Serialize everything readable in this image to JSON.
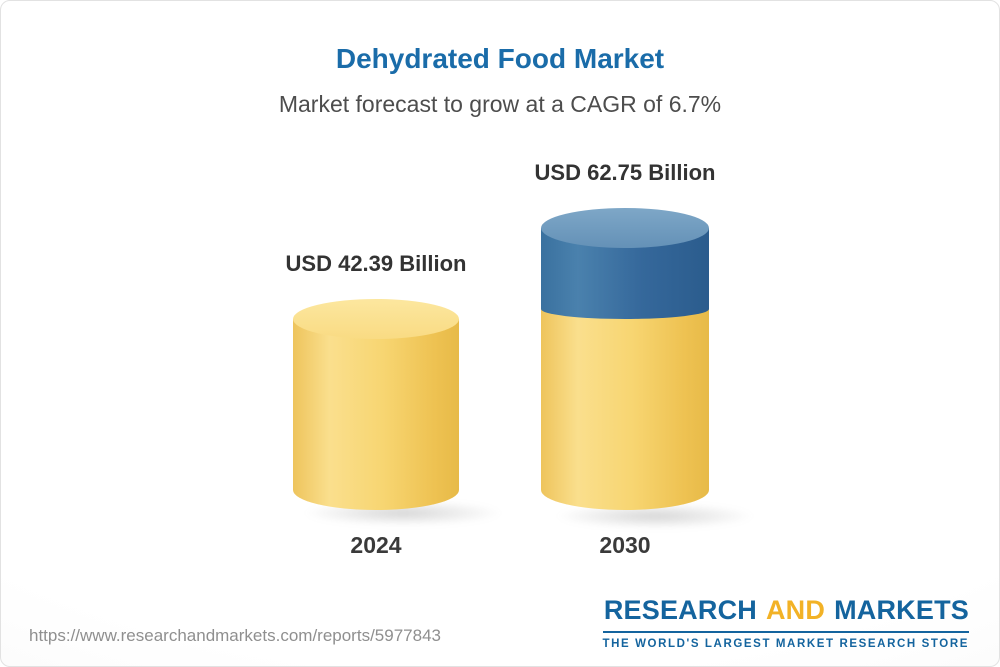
{
  "chart_data": {
    "type": "bar",
    "bar_style": "3d-cylinder",
    "title": "Dehydrated Food Market",
    "subtitle": "Market forecast to grow at a CAGR of 6.7%",
    "cagr_percent": 6.7,
    "unit": "USD Billion",
    "categories": [
      "2024",
      "2030"
    ],
    "values": [
      42.39,
      62.75
    ],
    "bars": [
      {
        "category": "2024",
        "value": 42.39,
        "label": "USD 42.39 Billion",
        "colors": [
          "#f6d36d"
        ]
      },
      {
        "category": "2030",
        "value": 62.75,
        "label": "USD 62.75 Billion",
        "colors": [
          "#f6d36d",
          "#35689b"
        ]
      }
    ],
    "xlabel": "",
    "ylabel": "",
    "legend": "none",
    "gridlines": false
  },
  "colors": {
    "title_blue": "#1a6ca9",
    "bar_yellow": "#f6d36d",
    "bar_blue": "#35689b",
    "logo_blue": "#14649e",
    "logo_gold": "#f2b226"
  },
  "footer": {
    "url": "https://www.researchandmarkets.com/reports/5977843",
    "logo": {
      "word1": "RESEARCH",
      "word2": "AND",
      "word3": "MARKETS",
      "tagline": "THE WORLD'S LARGEST MARKET RESEARCH STORE"
    }
  }
}
